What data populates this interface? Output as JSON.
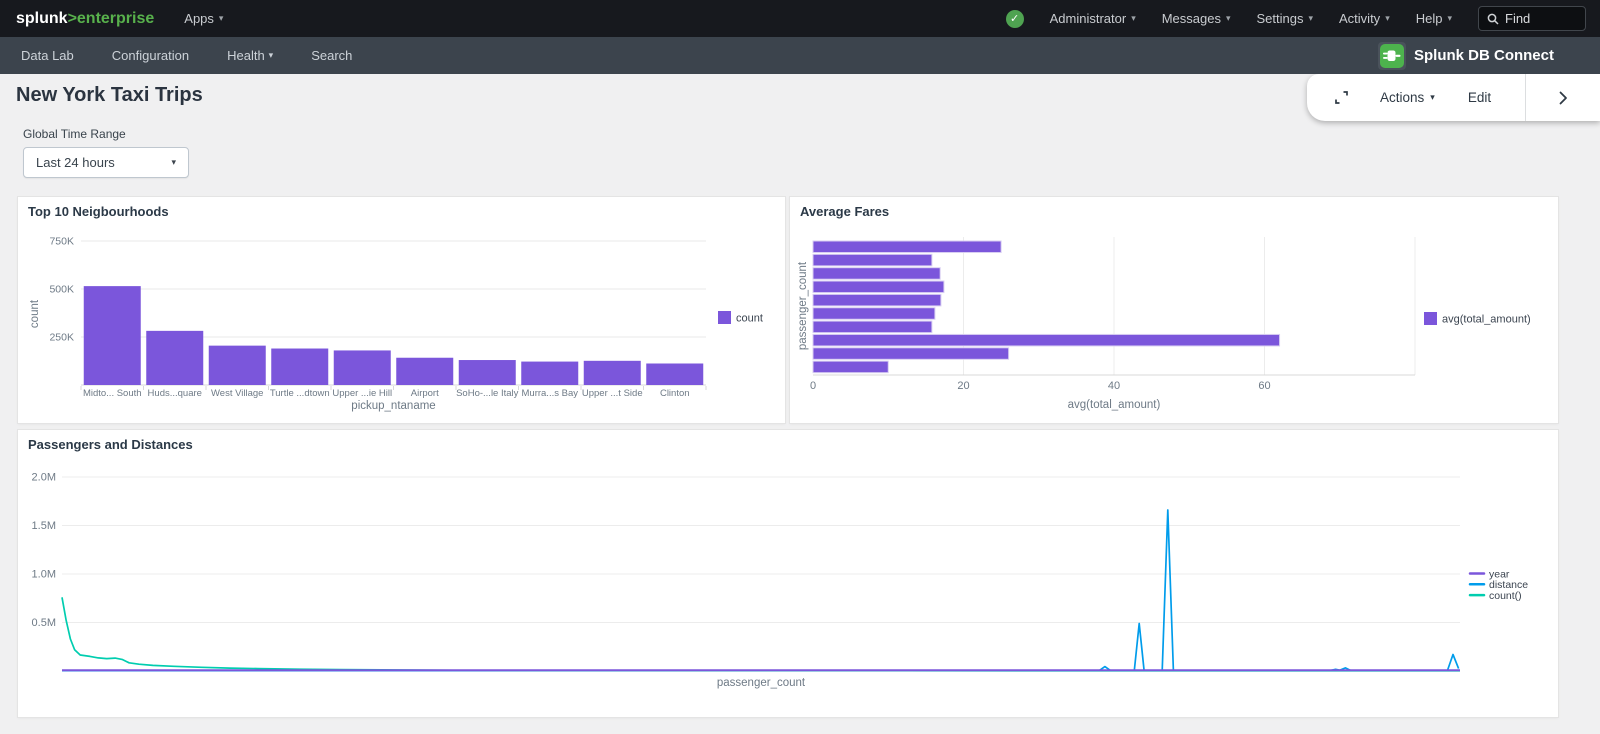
{
  "topbar": {
    "logo_brand": "splunk",
    "logo_rest": ">enterprise",
    "apps_label": "Apps",
    "right_items": [
      "Administrator",
      "Messages",
      "Settings",
      "Activity",
      "Help"
    ],
    "find_placeholder": "Find"
  },
  "navbar": {
    "items": [
      "Data Lab",
      "Configuration",
      "Health",
      "Search"
    ],
    "app_name": "Splunk DB Connect"
  },
  "header": {
    "title": "New York Taxi Trips",
    "actions_label": "Actions",
    "edit_label": "Edit"
  },
  "time_range": {
    "label": "Global Time Range",
    "value": "Last 24 hours"
  },
  "colors": {
    "accent_purple": "#7b56db",
    "line_blue": "#009ceb",
    "line_teal": "#00cdaf",
    "splunk_green": "#58b14c",
    "status_green": "#4fa351",
    "topbar_bg": "#17191e",
    "navbar_bg": "#3c444d"
  },
  "chart_data": [
    {
      "type": "bar",
      "title": "Top 10 Neigbourhoods",
      "categories": [
        "Midto... South",
        "Huds...quare",
        "West Village",
        "Turtle ...dtown",
        "Upper ...ie Hill",
        "Airport",
        "SoHo-...le Italy",
        "Murra...s Bay",
        "Upper ...t Side",
        "Clinton"
      ],
      "values": [
        515000,
        282000,
        205000,
        190000,
        180000,
        142000,
        130000,
        122000,
        126000,
        112000
      ],
      "xlabel": "pickup_ntaname",
      "ylabel": "count",
      "yticks": [
        {
          "value": 250000,
          "label": "250K"
        },
        {
          "value": 500000,
          "label": "500K"
        },
        {
          "value": 750000,
          "label": "750K"
        }
      ],
      "ylim": [
        0,
        800000
      ],
      "grid": "horizontal",
      "bar_color": "#7b56db",
      "legend": {
        "position": "right",
        "entries": [
          {
            "label": "count",
            "color": "#7b56db"
          }
        ]
      }
    },
    {
      "type": "bar-horizontal",
      "title": "Average Fares",
      "values": [
        25,
        15.8,
        16.9,
        17.4,
        17,
        16.2,
        15.8,
        62,
        26,
        10
      ],
      "xlabel": "avg(total_amount)",
      "ylabel": "passenger_count",
      "xticks": [
        0,
        20,
        40,
        60
      ],
      "xlim": [
        0,
        80
      ],
      "grid": "vertical",
      "bar_color": "#7b56db",
      "legend": {
        "position": "right",
        "entries": [
          {
            "label": "avg(total_amount)",
            "color": "#7b56db"
          }
        ]
      }
    },
    {
      "type": "line",
      "title": "Passengers and Distances",
      "xlabel": "passenger_count",
      "ylabel": "",
      "yticks": [
        {
          "value": 0.5,
          "label": "0.5M"
        },
        {
          "value": 1.0,
          "label": "1.0M"
        },
        {
          "value": 1.5,
          "label": "1.5M"
        },
        {
          "value": 2.0,
          "label": "2.0M"
        }
      ],
      "ylim": [
        0,
        2.1
      ],
      "y_units": "millions",
      "x_encoding": "percent_of_axis",
      "grid": "horizontal",
      "legend": {
        "position": "right",
        "entries": [
          {
            "label": "year",
            "color": "#7b56db"
          },
          {
            "label": "distance",
            "color": "#009ceb"
          },
          {
            "label": "count()",
            "color": "#00cdaf"
          }
        ]
      },
      "series": [
        {
          "name": "year",
          "color": "#7b56db",
          "points": [
            [
              0,
              0.008
            ],
            [
              100,
              0.008
            ]
          ]
        },
        {
          "name": "distance",
          "color": "#009ceb",
          "points": [
            [
              0,
              0.004
            ],
            [
              74.2,
              0.004
            ],
            [
              74.6,
              0.045
            ],
            [
              75,
              0.004
            ],
            [
              76.7,
              0.004
            ],
            [
              77.05,
              0.49
            ],
            [
              77.4,
              0.004
            ],
            [
              78.7,
              0.004
            ],
            [
              79.1,
              1.66
            ],
            [
              79.5,
              0.004
            ],
            [
              90.7,
              0.004
            ],
            [
              91.1,
              0.018
            ],
            [
              91.4,
              0.008
            ],
            [
              91.8,
              0.032
            ],
            [
              92.2,
              0.004
            ],
            [
              99.1,
              0.004
            ],
            [
              99.5,
              0.17
            ],
            [
              99.9,
              0.025
            ]
          ]
        },
        {
          "name": "count()",
          "color": "#00cdaf",
          "points": [
            [
              0,
              0.76
            ],
            [
              0.3,
              0.52
            ],
            [
              0.6,
              0.33
            ],
            [
              0.9,
              0.22
            ],
            [
              1.3,
              0.165
            ],
            [
              2,
              0.15
            ],
            [
              2.6,
              0.135
            ],
            [
              3.2,
              0.128
            ],
            [
              3.8,
              0.133
            ],
            [
              4.3,
              0.12
            ],
            [
              4.8,
              0.085
            ],
            [
              5.5,
              0.07
            ],
            [
              6.5,
              0.058
            ],
            [
              8,
              0.048
            ],
            [
              10,
              0.038
            ],
            [
              12,
              0.03
            ],
            [
              14,
              0.025
            ],
            [
              17,
              0.019
            ],
            [
              20,
              0.014
            ],
            [
              24,
              0.01
            ],
            [
              28,
              0.007
            ],
            [
              35,
              0.005
            ],
            [
              45,
              0.004
            ],
            [
              60,
              0.003
            ],
            [
              80,
              0.0025
            ],
            [
              100,
              0.002
            ]
          ]
        }
      ]
    }
  ]
}
